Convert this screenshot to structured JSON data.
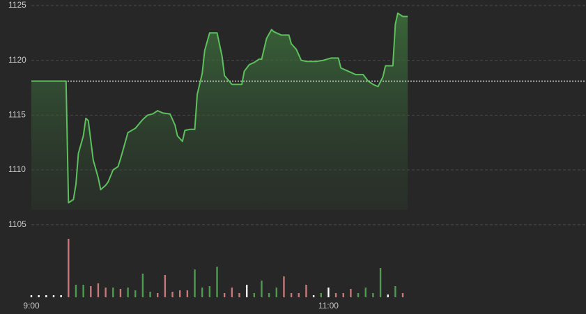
{
  "chart_data": {
    "type": "line",
    "x": [
      "9:00",
      "9:14",
      "9:15",
      "9:17",
      "9:18",
      "9:19",
      "9:21",
      "9:22",
      "9:23",
      "9:25",
      "9:27",
      "9:28",
      "9:30",
      "9:31",
      "9:33",
      "9:35",
      "9:36",
      "9:37",
      "9:39",
      "9:42",
      "9:45",
      "9:47",
      "9:49",
      "9:51",
      "9:53",
      "9:56",
      "9:58",
      "9:59",
      "10:01",
      "10:02",
      "10:04",
      "10:06",
      "10:07",
      "10:09",
      "10:10",
      "10:12",
      "10:15",
      "10:17",
      "10:18",
      "10:21",
      "10:25",
      "10:26",
      "10:28",
      "10:30",
      "10:32",
      "10:33",
      "10:35",
      "10:37",
      "10:38",
      "10:41",
      "10:44",
      "10:45",
      "10:47",
      "10:49",
      "10:51",
      "10:55",
      "10:58",
      "11:01",
      "11:04",
      "11:05",
      "11:07",
      "11:09",
      "11:11",
      "11:14",
      "11:16",
      "11:18",
      "11:20",
      "11:22",
      "11:23",
      "11:26",
      "11:27",
      "11:28",
      "11:30",
      "11:32"
    ],
    "values": [
      1118.1,
      1118.1,
      1107.0,
      1107.3,
      1108.7,
      1111.5,
      1113.1,
      1114.7,
      1114.5,
      1110.9,
      1109.3,
      1108.2,
      1108.6,
      1108.9,
      1110.0,
      1110.3,
      1111.0,
      1111.8,
      1113.4,
      1113.8,
      1114.6,
      1115.0,
      1115.1,
      1115.4,
      1115.2,
      1115.1,
      1114.1,
      1113.1,
      1112.6,
      1113.6,
      1113.7,
      1113.7,
      1116.9,
      1118.8,
      1120.9,
      1122.5,
      1122.5,
      1120.4,
      1118.6,
      1117.8,
      1117.8,
      1119.0,
      1119.6,
      1119.8,
      1120.1,
      1120.1,
      1122.0,
      1122.8,
      1122.6,
      1122.3,
      1122.3,
      1121.5,
      1121.0,
      1120.0,
      1119.9,
      1119.9,
      1120.0,
      1120.2,
      1120.2,
      1119.3,
      1119.1,
      1118.9,
      1118.7,
      1118.7,
      1118.1,
      1117.8,
      1117.6,
      1118.5,
      1119.5,
      1119.5,
      1123.3,
      1124.3,
      1124.0,
      1124.0
    ],
    "color": "#5cc05c",
    "reference_line": 1118.1,
    "reference_color": "#dddddd",
    "ylim": [
      1104,
      1125.5
    ],
    "yticks": [
      1105,
      1110,
      1115,
      1120,
      1125
    ],
    "xlim": [
      "9:00",
      "12:44"
    ],
    "xticks": [
      "9:00",
      "11:00"
    ],
    "grid": true,
    "volume": {
      "x": [
        "9:00",
        "9:03",
        "9:06",
        "9:09",
        "9:12",
        "9:15",
        "9:18",
        "9:21",
        "9:24",
        "9:27",
        "9:30",
        "9:33",
        "9:36",
        "9:39",
        "9:42",
        "9:45",
        "9:48",
        "9:51",
        "9:54",
        "9:57",
        "10:00",
        "10:03",
        "10:06",
        "10:09",
        "10:12",
        "10:15",
        "10:18",
        "10:21",
        "10:24",
        "10:27",
        "10:30",
        "10:33",
        "10:36",
        "10:39",
        "10:42",
        "10:45",
        "10:48",
        "10:51",
        "10:54",
        "10:57",
        "11:00",
        "11:03",
        "11:06",
        "11:09",
        "11:12",
        "11:15",
        "11:18",
        "11:21",
        "11:24",
        "11:27",
        "11:30"
      ],
      "values": [
        3,
        3,
        3,
        3,
        3,
        84,
        18,
        18,
        16,
        20,
        14,
        14,
        12,
        14,
        10,
        34,
        8,
        6,
        32,
        8,
        10,
        10,
        40,
        14,
        16,
        44,
        6,
        14,
        6,
        18,
        6,
        24,
        6,
        14,
        30,
        6,
        6,
        18,
        3,
        6,
        14,
        6,
        6,
        12,
        6,
        14,
        6,
        42,
        4,
        16,
        6
      ],
      "colors": [
        "#ffffff",
        "#ffffff",
        "#ffffff",
        "#ffffff",
        "#ffffff",
        "#c87878",
        "#4f9a4f",
        "#4f9a4f",
        "#c87878",
        "#c87878",
        "#c87878",
        "#4f9a4f",
        "#c87878",
        "#4f9a4f",
        "#4f9a4f",
        "#4f9a4f",
        "#4f9a4f",
        "#c87878",
        "#c87878",
        "#c87878",
        "#c87878",
        "#c87878",
        "#4f9a4f",
        "#4f9a4f",
        "#4f9a4f",
        "#4f9a4f",
        "#c87878",
        "#c87878",
        "#c87878",
        "#ffffff",
        "#4f9a4f",
        "#4f9a4f",
        "#4f9a4f",
        "#4f9a4f",
        "#c87878",
        "#c87878",
        "#c87878",
        "#c87878",
        "#ffffff",
        "#4f9a4f",
        "#ffffff",
        "#c87878",
        "#c87878",
        "#c87878",
        "#4f9a4f",
        "#4f9a4f",
        "#4f9a4f",
        "#4f9a4f",
        "#ffffff",
        "#4f9a4f",
        "#c87878"
      ],
      "ylim": [
        0,
        90
      ]
    }
  }
}
